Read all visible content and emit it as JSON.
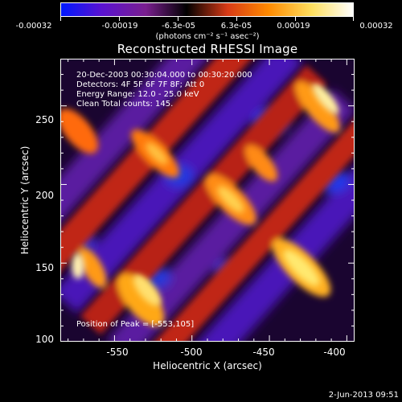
{
  "colorbar": {
    "tick_labels": [
      "-0.00032",
      "-0.00019",
      "-6.3e-05",
      "6.3e-05",
      "0.00019",
      "0.00032"
    ],
    "unit_text": "(photons cm⁻² s⁻¹ asec⁻²)",
    "colors": [
      "#0018ff",
      "#5a12d0",
      "#7a1f8f",
      "#000000",
      "#d83a16",
      "#ff8a00",
      "#ffe060",
      "#ffffff"
    ]
  },
  "image": {
    "title": "Reconstructed RHESSI Image",
    "info_lines": [
      "20-Dec-2003 00:30:04.000 to 00:30:20.000",
      "Detectors: 4F 5F 6F 7F 8F; Att 0",
      "Energy Range: 12.0 - 25.0 keV",
      "Clean     Total counts: 145."
    ],
    "peak_text": "Position of Peak = [-553,105]",
    "xlabel": "Heliocentric X (arcsec)",
    "ylabel": "Heliocentric Y (arcsec)",
    "x_ticks": [
      "-550",
      "-500",
      "-450",
      "-400"
    ],
    "y_ticks": [
      "250",
      "200",
      "150",
      "100"
    ],
    "x_range": [
      -585,
      -395
    ],
    "y_range": [
      100,
      280
    ],
    "x_tick_values": [
      -550,
      -500,
      -450,
      -400
    ],
    "y_tick_values": [
      250,
      200,
      150,
      100
    ]
  },
  "footer": {
    "timestamp": "2-Jun-2013 09:51"
  }
}
